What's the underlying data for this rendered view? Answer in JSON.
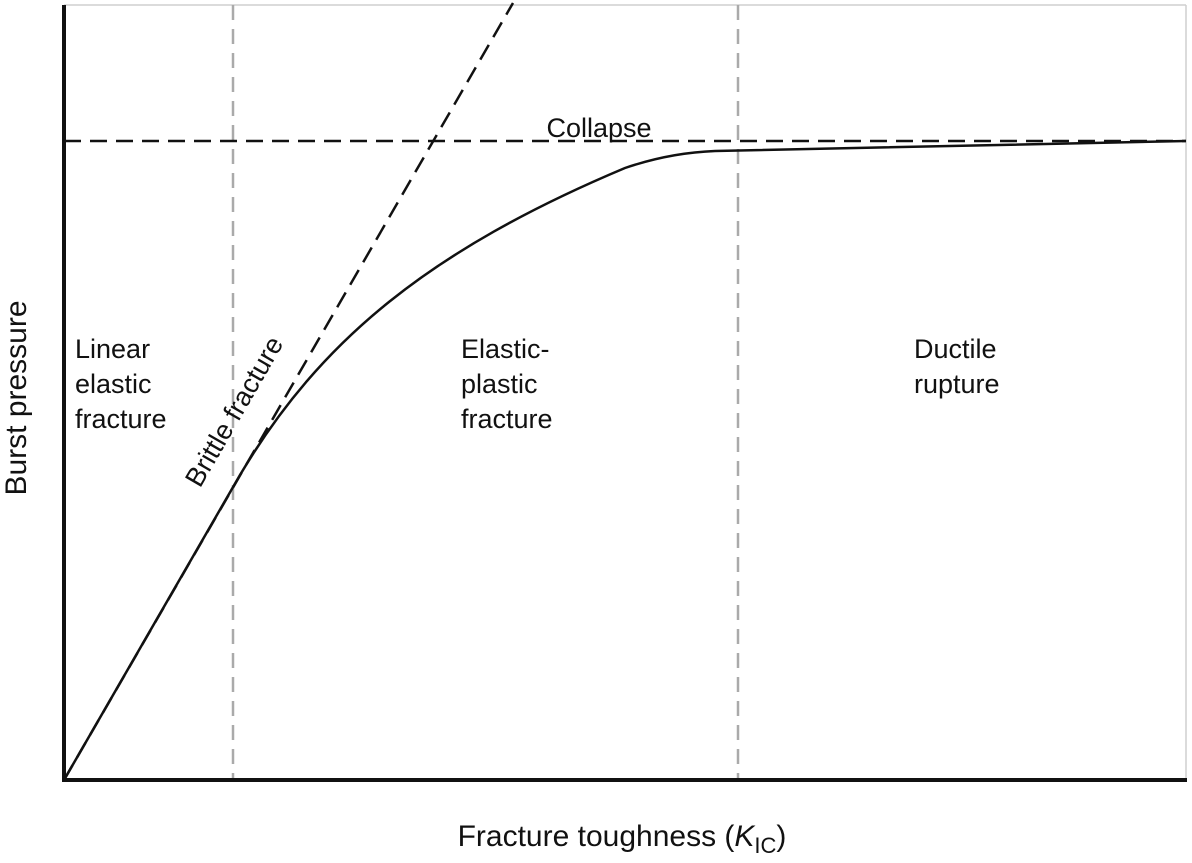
{
  "axes": {
    "ylabel": "Burst pressure",
    "xlabel_prefix": "Fracture toughness (",
    "xlabel_symbol": "K",
    "xlabel_subscript": "IC",
    "xlabel_suffix": ")"
  },
  "curves": {
    "collapse_label": "Collapse",
    "brittle_label": "Brittle fracture"
  },
  "regions": {
    "linear_elastic": [
      "Linear",
      "elastic",
      "fracture"
    ],
    "elastic_plastic": [
      "Elastic-",
      "plastic",
      "fracture"
    ],
    "ductile": [
      "Ductile",
      "rupture"
    ]
  },
  "colors": {
    "ink": "#111111",
    "boundary": "#aaaaaa"
  }
}
